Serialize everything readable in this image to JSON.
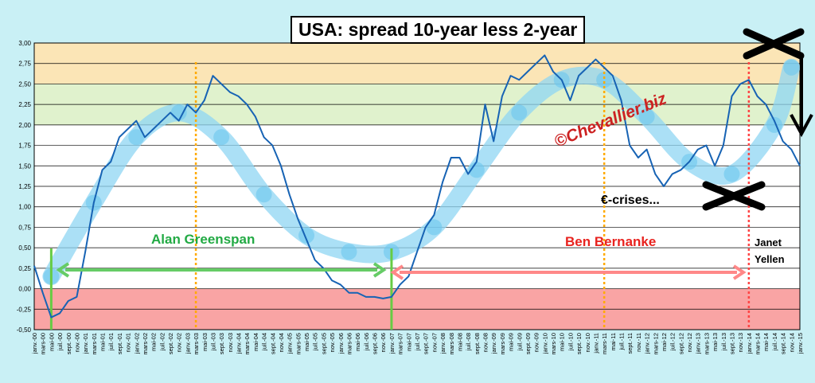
{
  "chart_data": {
    "type": "line",
    "title": "USA: spread 10-year less 2-year",
    "xlabel": "",
    "ylabel": "",
    "ylim": [
      -0.5,
      3.0
    ],
    "yticks": [
      "3,00",
      "2,75",
      "2,50",
      "2,25",
      "2,00",
      "1,75",
      "1,50",
      "1,25",
      "1,00",
      "0,75",
      "0,50",
      "0,25",
      "0,00",
      "-0,25",
      "-0,50"
    ],
    "xticks": [
      "janv.-00",
      "mars-00",
      "mai-00",
      "juil.-00",
      "sept.-00",
      "nov.-00",
      "janv.-01",
      "mars-01",
      "mai-01",
      "juil.-01",
      "sept.-01",
      "nov.-01",
      "janv.-02",
      "mars-02",
      "mai-02",
      "juil.-02",
      "sept.-02",
      "nov.-02",
      "janv.-03",
      "mars-03",
      "mai-03",
      "juil.-03",
      "sept.-03",
      "nov.-03",
      "janv.-04",
      "mars-04",
      "mai-04",
      "juil.-04",
      "sept.-04",
      "nov.-04",
      "janv.-05",
      "mars-05",
      "mai-05",
      "juil.-05",
      "sept.-05",
      "nov.-05",
      "janv.-06",
      "mars-06",
      "mai-06",
      "juil.-06",
      "sept.-06",
      "nov.-06",
      "janv.-07",
      "mars-07",
      "mai-07",
      "juil.-07",
      "sept.-07",
      "nov.-07",
      "janv.-08",
      "mars-08",
      "mai-08",
      "juil.-08",
      "sept.-08",
      "nov.-08",
      "janv.-09",
      "mars-09",
      "mai-09",
      "juil.-09",
      "sept.-09",
      "nov.-09",
      "janv.-10",
      "mars-10",
      "mai-10",
      "juil.-10",
      "sept.-10",
      "nov.-10",
      "janv.-11",
      "mars-11",
      "mai-11",
      "juil.-11",
      "sept.-11",
      "nov.-11",
      "janv.-12",
      "mars-12",
      "mai-12",
      "juil.-12",
      "sept.-12",
      "nov.-12",
      "janv.-13",
      "mars-13",
      "mai-13",
      "juil.-13",
      "sept.-13",
      "nov.-13",
      "janv.-14",
      "mars-14",
      "mai-14",
      "juil.-14",
      "sept.-14",
      "nov.-14",
      "janv.-15"
    ],
    "bands": [
      {
        "from": 2.5,
        "to": 3.0,
        "color": "#fbe5b6"
      },
      {
        "from": 2.0,
        "to": 2.5,
        "color": "#e0f2cd"
      },
      {
        "from": 0.0,
        "to": 2.0,
        "color": "#ffffff"
      },
      {
        "from": -0.5,
        "to": 0.0,
        "color": "#f9a4a4"
      }
    ],
    "series": [
      {
        "color": "#1763b4",
        "x": [
          "janv.-00",
          "mars-00",
          "mai-00",
          "juil.-00",
          "sept.-00",
          "nov.-00",
          "janv.-01",
          "mars-01",
          "mai-01",
          "juil.-01",
          "sept.-01",
          "nov.-01",
          "janv.-02",
          "mars-02",
          "mai-02",
          "juil.-02",
          "sept.-02",
          "nov.-02",
          "janv.-03",
          "mars-03",
          "mai-03",
          "juil.-03",
          "sept.-03",
          "nov.-03",
          "janv.-04",
          "mars-04",
          "mai-04",
          "juil.-04",
          "sept.-04",
          "nov.-04",
          "janv.-05",
          "mars-05",
          "mai-05",
          "juil.-05",
          "sept.-05",
          "nov.-05",
          "janv.-06",
          "mars-06",
          "mai-06",
          "juil.-06",
          "sept.-06",
          "nov.-06",
          "janv.-07",
          "mars-07",
          "mai-07",
          "juil.-07",
          "sept.-07",
          "nov.-07",
          "janv.-08",
          "mars-08",
          "mai-08",
          "juil.-08",
          "sept.-08",
          "nov.-08",
          "janv.-09",
          "mars-09",
          "mai-09",
          "juil.-09",
          "sept.-09",
          "nov.-09",
          "janv.-10",
          "mars-10",
          "mai-10",
          "juil.-10",
          "sept.-10",
          "nov.-10",
          "janv.-11",
          "mars-11",
          "mai-11",
          "juil.-11",
          "sept.-11",
          "nov.-11",
          "janv.-12",
          "mars-12",
          "mai-12",
          "juil.-12",
          "sept.-12",
          "nov.-12",
          "janv.-13",
          "mars-13",
          "mai-13",
          "juil.-13",
          "sept.-13",
          "nov.-13",
          "janv.-14",
          "mars-14",
          "mai-14",
          "juil.-14",
          "sept.-14",
          "nov.-14",
          "janv.-15"
        ],
        "values": [
          0.28,
          -0.05,
          -0.35,
          -0.3,
          -0.15,
          -0.1,
          0.45,
          1.05,
          1.45,
          1.55,
          1.85,
          1.95,
          2.05,
          1.85,
          1.95,
          2.05,
          2.15,
          2.05,
          2.25,
          2.15,
          2.3,
          2.6,
          2.5,
          2.4,
          2.35,
          2.25,
          2.1,
          1.85,
          1.75,
          1.5,
          1.15,
          0.85,
          0.6,
          0.35,
          0.25,
          0.1,
          0.05,
          -0.05,
          -0.05,
          -0.1,
          -0.1,
          -0.12,
          -0.1,
          0.05,
          0.15,
          0.45,
          0.75,
          0.9,
          1.3,
          1.6,
          1.6,
          1.4,
          1.55,
          2.25,
          1.8,
          2.35,
          2.6,
          2.55,
          2.65,
          2.75,
          2.85,
          2.65,
          2.55,
          2.3,
          2.6,
          2.7,
          2.8,
          2.7,
          2.6,
          2.3,
          1.75,
          1.6,
          1.7,
          1.4,
          1.25,
          1.4,
          1.45,
          1.55,
          1.7,
          1.75,
          1.5,
          1.75,
          2.35,
          2.5,
          2.55,
          2.35,
          2.25,
          2.05,
          1.8,
          1.7,
          1.5
        ]
      }
    ],
    "trend_curve": {
      "color": "#8fd6f3",
      "x": [
        "mai-00",
        "mars-01",
        "janv.-02",
        "nov.-02",
        "sept.-03",
        "juil.-04",
        "mai-05",
        "mars-06",
        "janv.-07",
        "nov.-07",
        "sept.-08",
        "juil.-09",
        "mai-10",
        "mars-11",
        "janv.-12",
        "nov.-12",
        "sept.-13",
        "juil.-14",
        "nov.-14"
      ],
      "values": [
        0.15,
        1.05,
        1.85,
        2.15,
        1.85,
        1.15,
        0.65,
        0.45,
        0.45,
        0.75,
        1.45,
        2.15,
        2.55,
        2.55,
        2.1,
        1.55,
        1.4,
        2.0,
        2.7
      ]
    },
    "vertical_lines": [
      {
        "x": "mai-00",
        "color": "#66cc44",
        "style": "solid"
      },
      {
        "x": "mars-03",
        "color": "#ffaa00",
        "style": "dotted"
      },
      {
        "x": "janv.-07",
        "color": "#66cc44",
        "style": "solid"
      },
      {
        "x": "mars-11",
        "color": "#ffaa00",
        "style": "dotted"
      },
      {
        "x": "janv.-14",
        "color": "#ff4444",
        "style": "dotted"
      }
    ],
    "annotations": {
      "greenspan": "Alan  Greenspan",
      "bernanke": "Ben  Bernanke",
      "yellen_line1": "Janet",
      "yellen_line2": "Yellen",
      "crises": "€-crises...",
      "watermark": "©Chevallier.biz"
    },
    "colors": {
      "greenspan": "#22aa44",
      "bernanke": "#e8231f",
      "greenspan_arrow": "#66cc66",
      "bernanke_arrow": "#ff8888",
      "watermark": "#cc2222"
    }
  }
}
